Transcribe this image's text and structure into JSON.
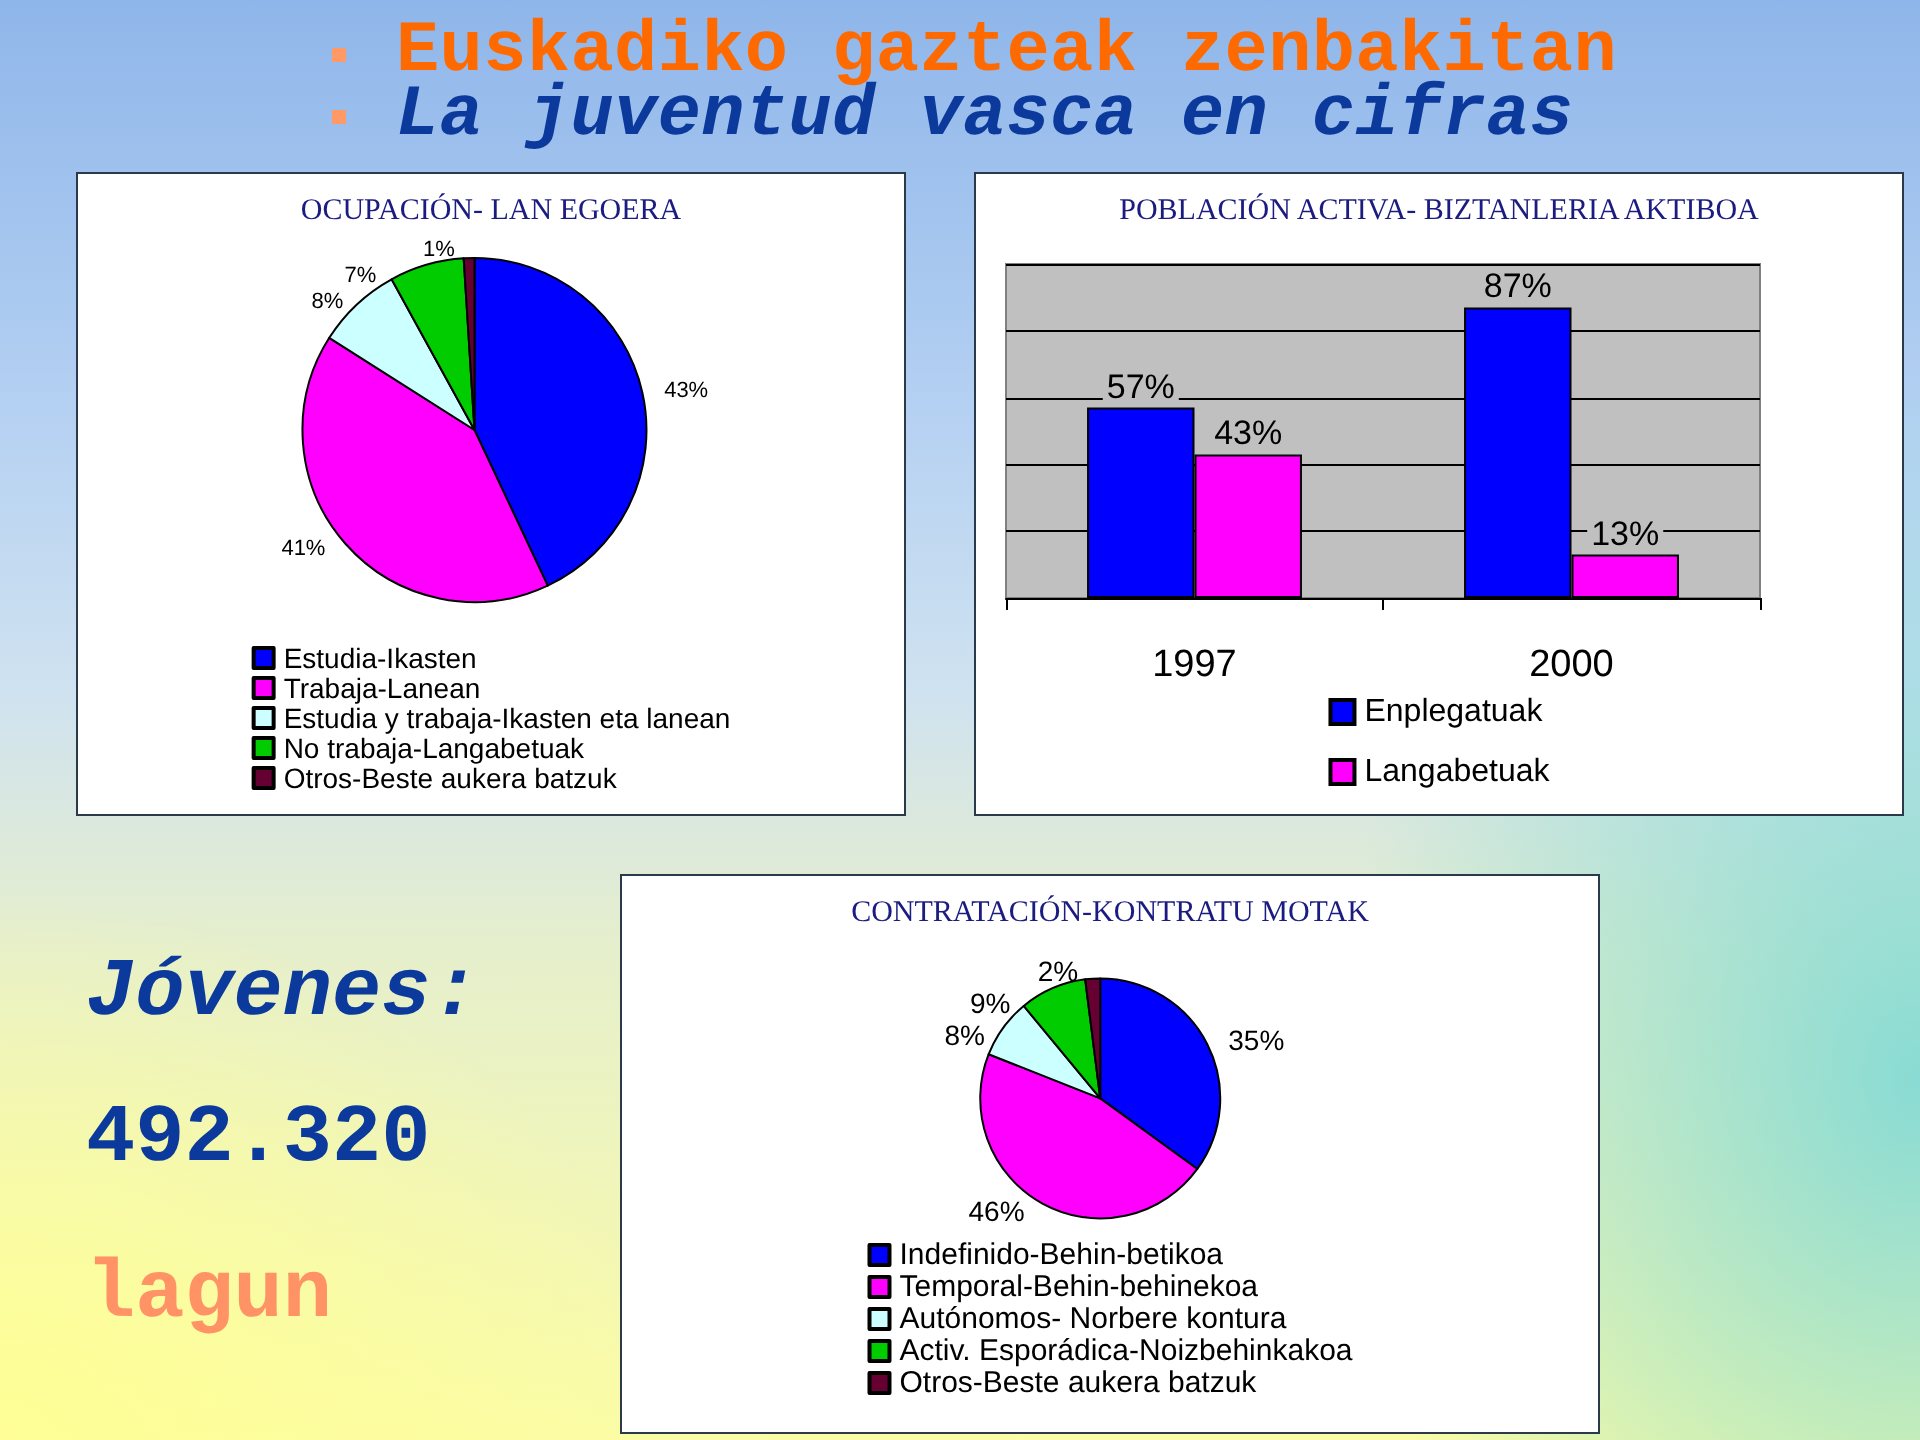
{
  "chart_data": [
    {
      "type": "other",
      "title": "Euskadiko gazteak zenbakitan",
      "subtitle": "La juventud vasca en cifras"
    },
    {
      "type": "pie",
      "title": "OCUPACIÓN- LAN EGOERA",
      "categories": [
        "Estudia-Ikasten",
        "Trabaja-Lanean",
        "Estudia y trabaja-Ikasten eta lanean",
        "No trabaja-Langabetuak",
        "Otros-Beste aukera batzuk"
      ],
      "values": [
        43,
        41,
        8,
        7,
        1
      ],
      "colors": [
        "#0000ff",
        "#ff00ff",
        "#ccffff",
        "#00cc00",
        "#660033"
      ],
      "value_labels": [
        "43%",
        "41%",
        "8%",
        "7%",
        "1%"
      ],
      "legend": "bottom"
    },
    {
      "type": "bar",
      "title": "POBLACIÓN ACTIVA- BIZTANLERIA AKTIBOA",
      "categories": [
        "1997",
        "2000"
      ],
      "series": [
        {
          "name": "Enplegatuak",
          "color": "#0000ff",
          "values": [
            57,
            87
          ],
          "value_labels": [
            "57%",
            "87%"
          ]
        },
        {
          "name": "Langabetuak",
          "color": "#ff00ff",
          "values": [
            43,
            13
          ],
          "value_labels": [
            "43%",
            "13%"
          ]
        }
      ],
      "ylim": [
        0,
        100
      ],
      "yticks": [
        {
          "value": 0,
          "label": null
        },
        {
          "value": 20,
          "label": null
        },
        {
          "value": 40,
          "label": null
        },
        {
          "value": 60,
          "label": null
        },
        {
          "value": 80,
          "label": null
        },
        {
          "value": 100,
          "label": null
        }
      ],
      "tick_labels": "x",
      "grid": "y",
      "legend": "bottom"
    },
    {
      "type": "other",
      "annotations": [
        "Jóvenes:",
        "492.320",
        "lagun"
      ]
    },
    {
      "type": "pie",
      "title": "CONTRATACIÓN-KONTRATU MOTAK",
      "categories": [
        "Indefinido-Behin-betikoa",
        "Temporal-Behin-behinekoa",
        "Autónomos- Norbere kontura",
        "Activ. Esporádica-Noizbehinkakoa",
        "Otros-Beste aukera batzuk"
      ],
      "values": [
        35,
        46,
        8,
        9,
        2
      ],
      "colors": [
        "#0000ff",
        "#ff00ff",
        "#ccffff",
        "#00cc00",
        "#660033"
      ],
      "value_labels": [
        "35%",
        "46%",
        "8%",
        "9%",
        "2%"
      ],
      "legend": "bottom"
    }
  ]
}
